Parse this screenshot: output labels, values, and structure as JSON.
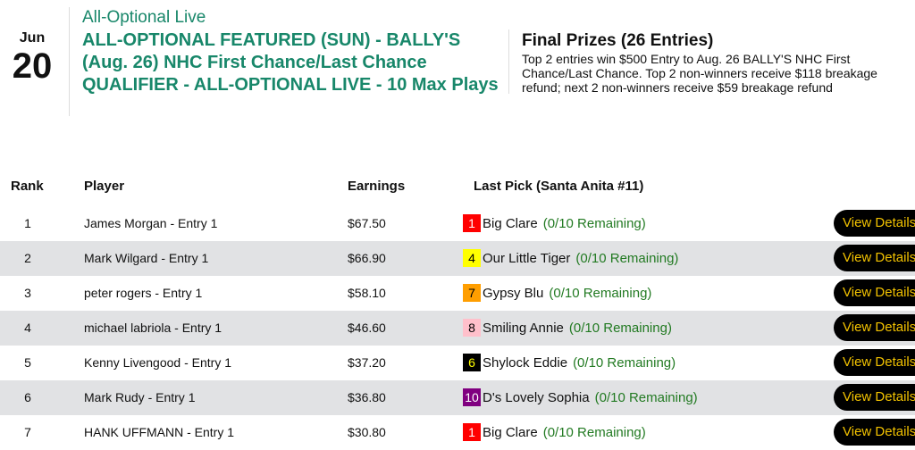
{
  "event": {
    "month": "Jun",
    "day": "20",
    "category": "All-Optional Live",
    "title": "ALL-OPTIONAL FEATURED (SUN) - BALLY'S (Aug. 26) NHC First Chance/Last Chance QUALIFIER - ALL-OPTIONAL LIVE - 10 Max Plays"
  },
  "prizes": {
    "heading": "Final Prizes (26 Entries)",
    "description": "Top 2 entries win $500 Entry to Aug. 26 BALLY'S NHC First Chance/Last Chance. Top 2 non-winners receive $118 breakage refund; next 2 non-winners receive $59 breakage refund"
  },
  "table": {
    "headers": {
      "rank": "Rank",
      "player": "Player",
      "earnings": "Earnings",
      "last_pick": "Last Pick (Santa Anita #11)"
    },
    "button_label": "View Details",
    "rows": [
      {
        "rank": "1",
        "player": "James Morgan - Entry 1",
        "earnings": "$67.50",
        "pick_num": "1",
        "pick_bg": "#ff0000",
        "pick_fg": "#ffffff",
        "horse": "Big Clare",
        "remaining": "(0/10 Remaining)"
      },
      {
        "rank": "2",
        "player": "Mark Wilgard - Entry 1",
        "earnings": "$66.90",
        "pick_num": "4",
        "pick_bg": "#ffff00",
        "pick_fg": "#000000",
        "horse": "Our Little Tiger",
        "remaining": "(0/10 Remaining)"
      },
      {
        "rank": "3",
        "player": "peter rogers - Entry 1",
        "earnings": "$58.10",
        "pick_num": "7",
        "pick_bg": "#ff9e00",
        "pick_fg": "#000000",
        "horse": "Gypsy Blu",
        "remaining": "(0/10 Remaining)"
      },
      {
        "rank": "4",
        "player": "michael labriola - Entry 1",
        "earnings": "$46.60",
        "pick_num": "8",
        "pick_bg": "#ffc0cb",
        "pick_fg": "#000000",
        "horse": "Smiling Annie",
        "remaining": "(0/10 Remaining)"
      },
      {
        "rank": "5",
        "player": "Kenny Livengood - Entry 1",
        "earnings": "$37.20",
        "pick_num": "6",
        "pick_bg": "#000000",
        "pick_fg": "#ffff00",
        "horse": "Shylock Eddie",
        "remaining": "(0/10 Remaining)"
      },
      {
        "rank": "6",
        "player": "Mark Rudy - Entry 1",
        "earnings": "$36.80",
        "pick_num": "10",
        "pick_bg": "#800080",
        "pick_fg": "#ffffff",
        "horse": "D's Lovely Sophia",
        "remaining": "(0/10 Remaining)"
      },
      {
        "rank": "7",
        "player": "HANK UFFMANN - Entry 1",
        "earnings": "$30.80",
        "pick_num": "1",
        "pick_bg": "#ff0000",
        "pick_fg": "#ffffff",
        "horse": "Big Clare",
        "remaining": "(0/10 Remaining)"
      }
    ]
  }
}
